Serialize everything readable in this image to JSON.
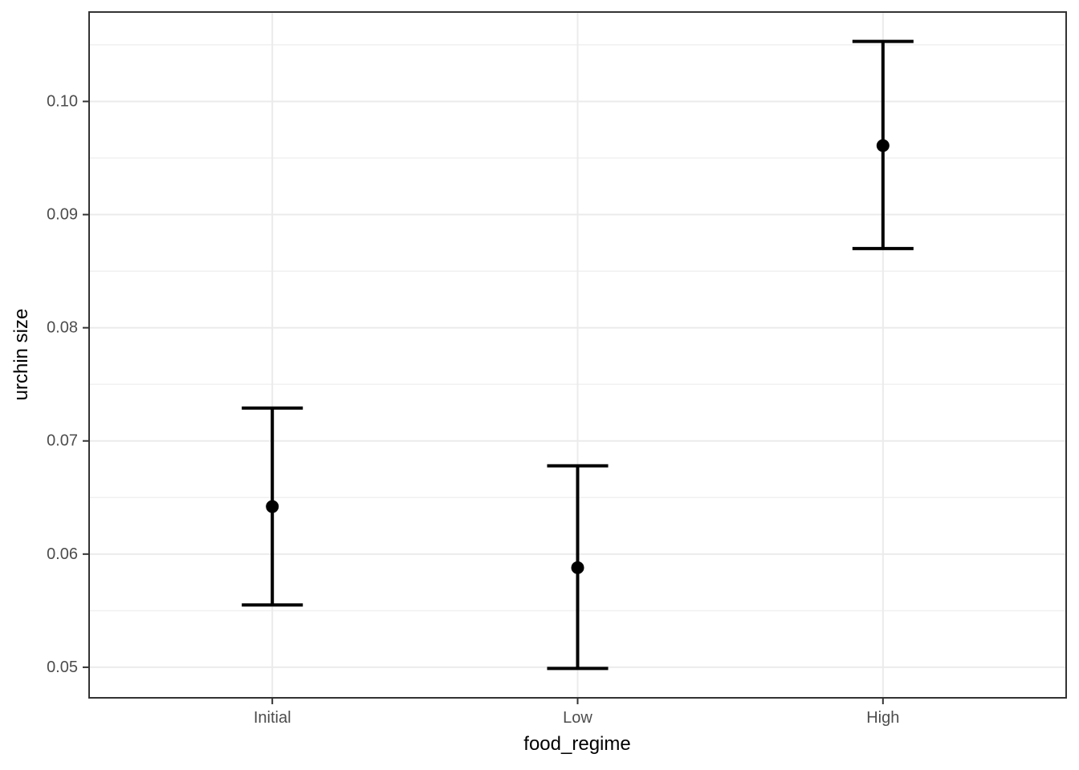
{
  "chart_data": {
    "type": "pointrange",
    "title": "",
    "xlabel": "food_regime",
    "ylabel": "urchin size",
    "categories": [
      "Initial",
      "Low",
      "High"
    ],
    "series": [
      {
        "points": [
          {
            "category": "Initial",
            "mean": 0.0642,
            "lower": 0.0555,
            "upper": 0.0729
          },
          {
            "category": "Low",
            "mean": 0.0588,
            "lower": 0.0499,
            "upper": 0.0678
          },
          {
            "category": "High",
            "mean": 0.0961,
            "lower": 0.087,
            "upper": 0.1053
          }
        ]
      }
    ],
    "y_ticks": [
      0.05,
      0.06,
      0.07,
      0.08,
      0.09,
      0.1
    ],
    "y_tick_labels": [
      "0.05",
      "0.06",
      "0.07",
      "0.08",
      "0.09",
      "0.10"
    ],
    "y_minor_gridlines": [
      0.055,
      0.065,
      0.075,
      0.085,
      0.095,
      0.105
    ],
    "ylim": [
      0.0473,
      0.1079
    ],
    "grid": true,
    "legend_position": "none",
    "errorbar_cap_width": 0.2
  },
  "style": {
    "point_color": "#000000",
    "line_color": "#000000",
    "grid_major_color": "#EBEBEB",
    "grid_minor_color": "#F0F0F0",
    "panel_border_color": "#333333",
    "tick_mark_color": "#333333",
    "tick_label_color": "#4D4D4D",
    "axis_title_color": "#000000",
    "panel_background": "#FFFFFF",
    "plot_background": "#FFFFFF"
  }
}
